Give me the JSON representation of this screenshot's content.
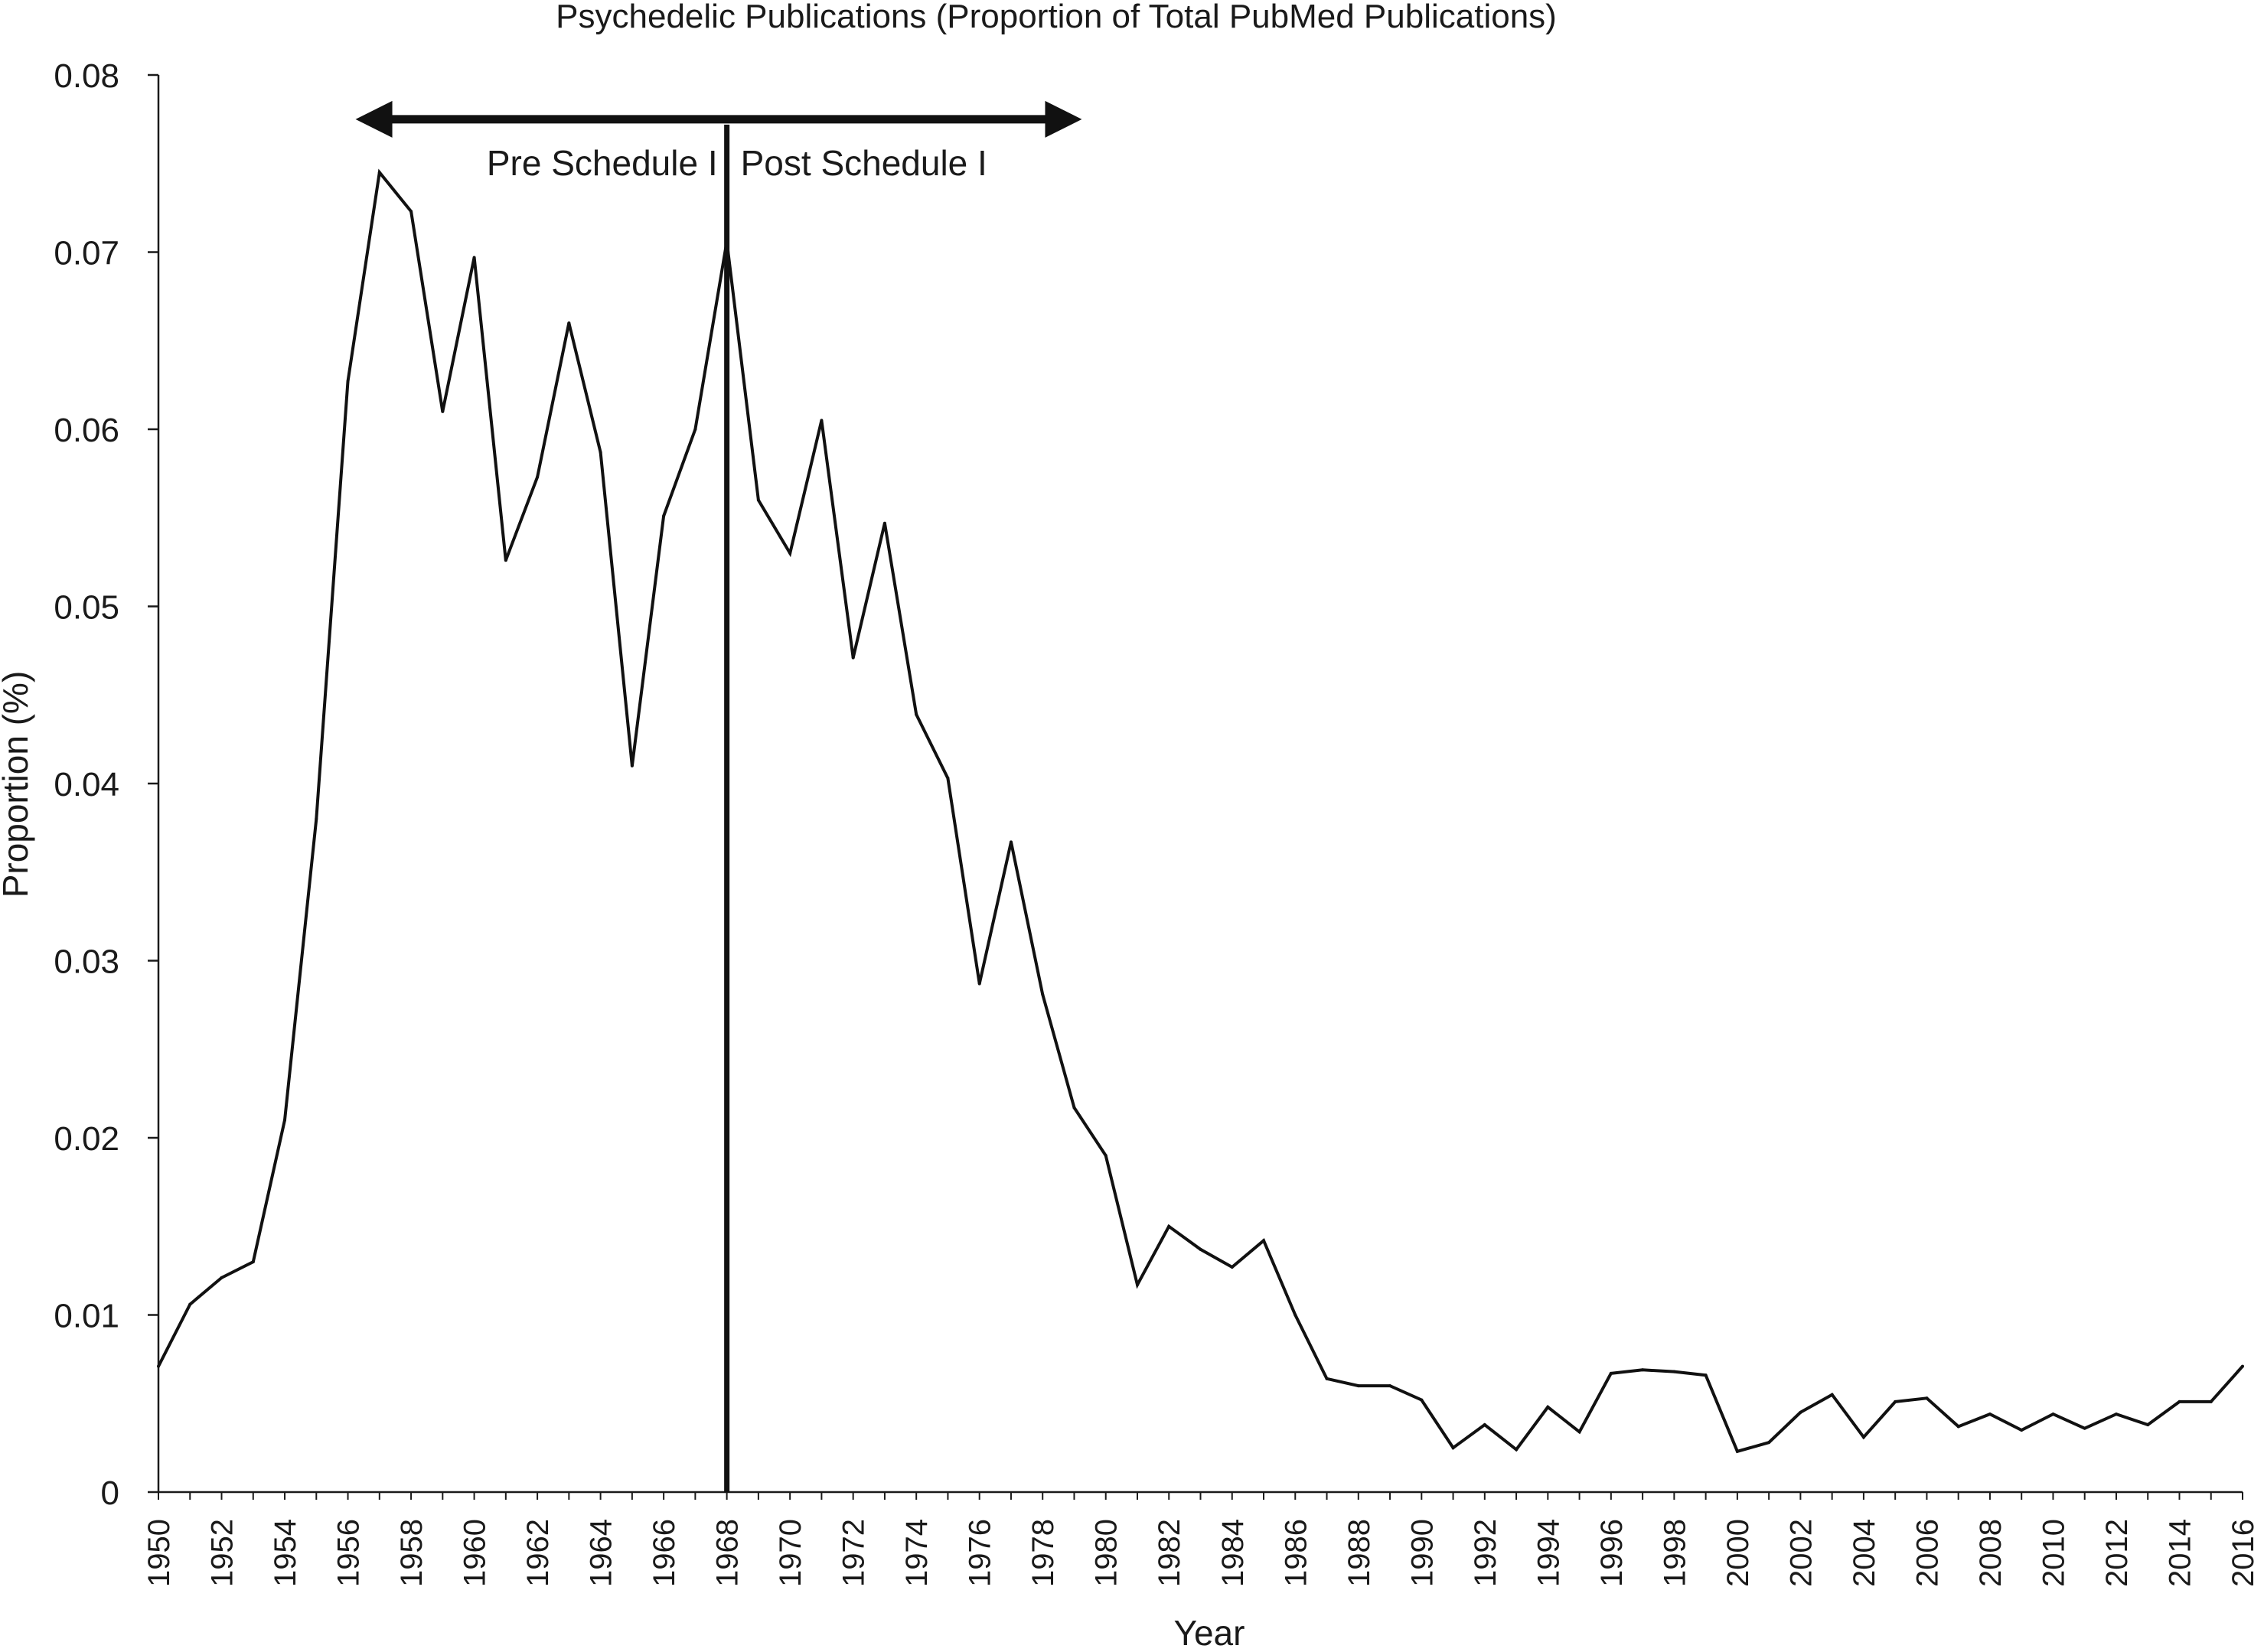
{
  "chart_data": {
    "type": "line",
    "title": "Psychedelic Publications (Proportion of Total PubMed Publications)",
    "xlabel": "Year",
    "ylabel": "Proportion (%)",
    "xlim": [
      1950,
      2016
    ],
    "ylim": [
      0,
      0.08
    ],
    "yticks": [
      "0",
      "0.01",
      "0.02",
      "0.03",
      "0.04",
      "0.05",
      "0.06",
      "0.07",
      "0.08"
    ],
    "xticks": [
      1950,
      1952,
      1954,
      1956,
      1958,
      1960,
      1962,
      1964,
      1966,
      1968,
      1970,
      1972,
      1974,
      1976,
      1978,
      1980,
      1982,
      1984,
      1986,
      1988,
      1990,
      1992,
      1994,
      1996,
      1998,
      2000,
      2002,
      2004,
      2006,
      2008,
      2010,
      2012,
      2014,
      2016
    ],
    "grid": false,
    "legend": "none",
    "line_color": "#111111",
    "series": [
      {
        "x": [
          1950,
          1951,
          1952,
          1953,
          1954,
          1955,
          1956,
          1957,
          1958,
          1959,
          1960,
          1961,
          1962,
          1963,
          1964,
          1965,
          1966,
          1967,
          1968,
          1969,
          1970,
          1971,
          1972,
          1973,
          1974,
          1975,
          1976,
          1977,
          1978,
          1979,
          1980,
          1981,
          1982,
          1983,
          1984,
          1985,
          1986,
          1987,
          1988,
          1989,
          1990,
          1991,
          1992,
          1993,
          1994,
          1995,
          1996,
          1997,
          1998,
          1999,
          2000,
          2001,
          2002,
          2003,
          2004,
          2005,
          2006,
          2007,
          2008,
          2009,
          2010,
          2011,
          2012,
          2013,
          2014,
          2015,
          2016
        ],
        "values": [
          0.0071,
          0.0106,
          0.0121,
          0.013,
          0.021,
          0.038,
          0.0627,
          0.0745,
          0.0723,
          0.061,
          0.0697,
          0.0526,
          0.0573,
          0.066,
          0.0587,
          0.041,
          0.0551,
          0.06,
          0.0706,
          0.056,
          0.053,
          0.0605,
          0.0471,
          0.0547,
          0.0439,
          0.0403,
          0.0287,
          0.0367,
          0.0281,
          0.0217,
          0.019,
          0.0117,
          0.015,
          0.0137,
          0.0127,
          0.0142,
          0.01,
          0.0064,
          0.006,
          0.006,
          0.0052,
          0.0025,
          0.0038,
          0.0024,
          0.0048,
          0.0034,
          0.0067,
          0.0069,
          0.0068,
          0.0066,
          0.0023,
          0.0028,
          0.0045,
          0.0055,
          0.0031,
          0.0051,
          0.0053,
          0.0037,
          0.0044,
          0.0035,
          0.0044,
          0.0036,
          0.0044,
          0.0038,
          0.0051,
          0.0051,
          0.0071
        ]
      }
    ],
    "annotations": {
      "divider_year": 1968,
      "divider_top": 0.0772,
      "arrow_from_year": 1956,
      "arrow_to_year": 1979,
      "arrow_level": 0.0775,
      "pre_label": "Pre Schedule I",
      "post_label": "Post Schedule I"
    }
  }
}
